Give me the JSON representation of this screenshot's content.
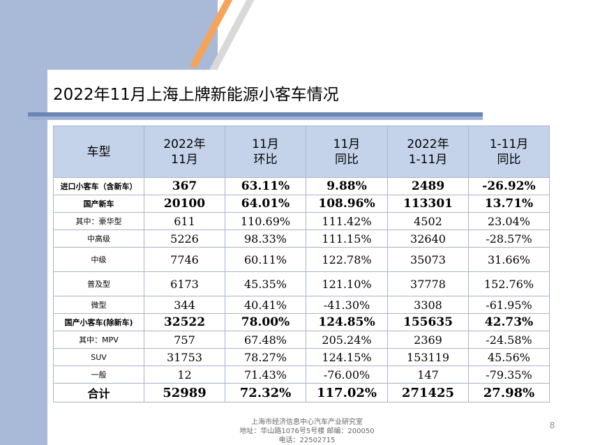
{
  "slide": {
    "title": "2022年11月上海上牌新能源小客车情况",
    "page_number": "8",
    "footer_lines": [
      "上海市经济信息中心汽车产业研究室",
      "地址：华山路1076号5号楼  邮编：200050",
      "电话：22502715"
    ]
  },
  "table": {
    "headers": [
      [
        "车型"
      ],
      [
        "2022年",
        "11月"
      ],
      [
        "11月",
        "环比"
      ],
      [
        "11月",
        "同比"
      ],
      [
        "2022年",
        "1-11月"
      ],
      [
        "1-11月",
        "同比"
      ]
    ],
    "rows": [
      [
        "进口小客车（含新车）",
        "367",
        "63.11%",
        "9.88%",
        "2489",
        "-26.92%"
      ],
      [
        "国产新车",
        "20100",
        "64.01%",
        "108.96%",
        "113301",
        "13.71%"
      ],
      [
        "其中：豪华型",
        "611",
        "110.69%",
        "111.42%",
        "4502",
        "23.04%"
      ],
      [
        "中高级",
        "5226",
        "98.33%",
        "111.15%",
        "32640",
        "-28.57%"
      ],
      [
        "中级",
        "7746",
        "60.11%",
        "122.78%",
        "35073",
        "31.66%"
      ],
      [
        "普及型",
        "6173",
        "45.35%",
        "121.10%",
        "37778",
        "152.76%"
      ],
      [
        "微型",
        "344",
        "40.41%",
        "-41.30%",
        "3308",
        "-61.95%"
      ],
      [
        "国产小客车(除新车)",
        "32522",
        "78.00%",
        "124.85%",
        "155635",
        "42.73%"
      ],
      [
        "其中：MPV",
        "757",
        "67.48%",
        "205.24%",
        "2369",
        "-24.58%"
      ],
      [
        "SUV",
        "31753",
        "78.27%",
        "124.15%",
        "153119",
        "45.56%"
      ],
      [
        "一般",
        "12",
        "71.43%",
        "-76.00%",
        "147",
        "-79.35%"
      ],
      [
        "合计",
        "52989",
        "72.32%",
        "117.02%",
        "271425",
        "27.98%"
      ]
    ]
  }
}
